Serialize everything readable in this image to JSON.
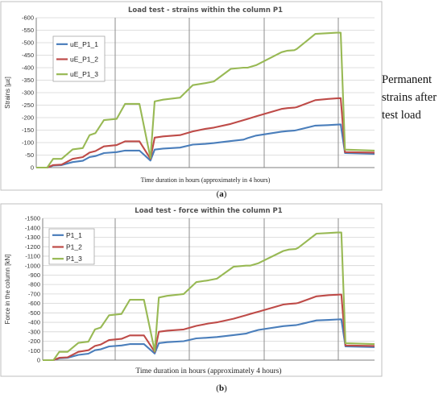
{
  "annotation": {
    "lines": [
      "Permanent",
      "strains after",
      "test load"
    ]
  },
  "chart_data": [
    {
      "type": "line",
      "title": "Load test - strains within the column  P1",
      "xlabel": "Time duration in hours (approximately in 4 hours)",
      "ylabel": "Strains [µε]",
      "caption": "(a)",
      "yticks": [
        "-600",
        "-550",
        "-500",
        "-450",
        "-400",
        "-350",
        "-300",
        "-250",
        "-200",
        "-150",
        "-100",
        "-50",
        "0"
      ],
      "ylim": [
        0,
        -600
      ],
      "y_inverted": true,
      "grid": "on",
      "legend_position": "upper-left",
      "x": [
        0,
        0.13,
        0.2,
        0.3,
        0.43,
        0.55,
        0.63,
        0.7,
        0.8,
        0.95,
        1.05,
        1.22,
        1.35,
        1.4,
        1.5,
        1.7,
        1.85,
        2.0,
        2.1,
        2.3,
        2.45,
        2.5,
        2.6,
        2.9,
        2.97,
        3.05,
        3.08,
        3.3,
        3.45,
        3.55,
        3.6,
        3.65,
        4.0
      ],
      "series": [
        {
          "name": "uE_P1_1",
          "color": "#4a7ebb",
          "values": [
            0,
            0,
            -8,
            -10,
            -22,
            -27,
            -42,
            -46,
            -58,
            -62,
            -68,
            -68,
            -28,
            -72,
            -76,
            -80,
            -92,
            -95,
            -98,
            -106,
            -112,
            -118,
            -128,
            -144,
            -146,
            -148,
            -150,
            -168,
            -170,
            -172,
            -173,
            -58,
            -55
          ]
        },
        {
          "name": "uE_P1_2",
          "color": "#be4b48",
          "values": [
            0,
            0,
            -10,
            -12,
            -35,
            -42,
            -60,
            -66,
            -85,
            -90,
            -105,
            -105,
            -35,
            -120,
            -125,
            -130,
            -145,
            -155,
            -160,
            -175,
            -190,
            -195,
            -205,
            -235,
            -238,
            -240,
            -242,
            -270,
            -275,
            -277,
            -278,
            -62,
            -60
          ]
        },
        {
          "name": "uE_P1_3",
          "color": "#98b954",
          "values": [
            0,
            0,
            -35,
            -35,
            -73,
            -78,
            -130,
            -138,
            -190,
            -195,
            -255,
            -255,
            -38,
            -265,
            -272,
            -280,
            -330,
            -338,
            -345,
            -395,
            -400,
            -400,
            -410,
            -462,
            -468,
            -470,
            -475,
            -535,
            -538,
            -540,
            -540,
            -72,
            -68
          ]
        }
      ]
    },
    {
      "type": "line",
      "title": "Load test - force within the column  P1",
      "xlabel": "Time duration in hours (approximately 4 hours)",
      "ylabel": "Force in the column [kN]",
      "caption": "(b)",
      "yticks": [
        "-1500",
        "-1400",
        "-1300",
        "-1200",
        "-1100",
        "-1000",
        "-900",
        "-800",
        "-700",
        "-600",
        "-500",
        "-400",
        "-300",
        "-200",
        "-100",
        "0"
      ],
      "ylim": [
        0,
        -1500
      ],
      "y_inverted": true,
      "grid": "on",
      "legend_position": "upper-left",
      "x": [
        0,
        0.13,
        0.2,
        0.3,
        0.43,
        0.55,
        0.63,
        0.7,
        0.8,
        0.95,
        1.05,
        1.22,
        1.35,
        1.4,
        1.5,
        1.7,
        1.85,
        2.0,
        2.1,
        2.3,
        2.45,
        2.5,
        2.6,
        2.9,
        2.97,
        3.05,
        3.08,
        3.3,
        3.45,
        3.55,
        3.6,
        3.65,
        4.0
      ],
      "series": [
        {
          "name": "P1_1",
          "color": "#4a7ebb",
          "values": [
            0,
            0,
            -20,
            -25,
            -55,
            -68,
            -105,
            -115,
            -145,
            -155,
            -170,
            -170,
            -70,
            -180,
            -190,
            -200,
            -230,
            -238,
            -245,
            -265,
            -280,
            -295,
            -320,
            -360,
            -365,
            -370,
            -375,
            -420,
            -425,
            -430,
            -432,
            -145,
            -138
          ]
        },
        {
          "name": "P1_2",
          "color": "#be4b48",
          "values": [
            0,
            0,
            -25,
            -30,
            -88,
            -105,
            -150,
            -165,
            -212,
            -225,
            -262,
            -262,
            -88,
            -300,
            -312,
            -325,
            -362,
            -388,
            -400,
            -438,
            -475,
            -488,
            -512,
            -588,
            -595,
            -600,
            -605,
            -675,
            -688,
            -692,
            -695,
            -155,
            -150
          ]
        },
        {
          "name": "P1_3",
          "color": "#98b954",
          "values": [
            0,
            0,
            -88,
            -88,
            -182,
            -195,
            -325,
            -345,
            -475,
            -488,
            -638,
            -638,
            -95,
            -662,
            -680,
            -700,
            -825,
            -845,
            -862,
            -988,
            -1000,
            -1000,
            -1025,
            -1155,
            -1170,
            -1175,
            -1188,
            -1338,
            -1345,
            -1350,
            -1350,
            -180,
            -170
          ]
        }
      ]
    }
  ]
}
